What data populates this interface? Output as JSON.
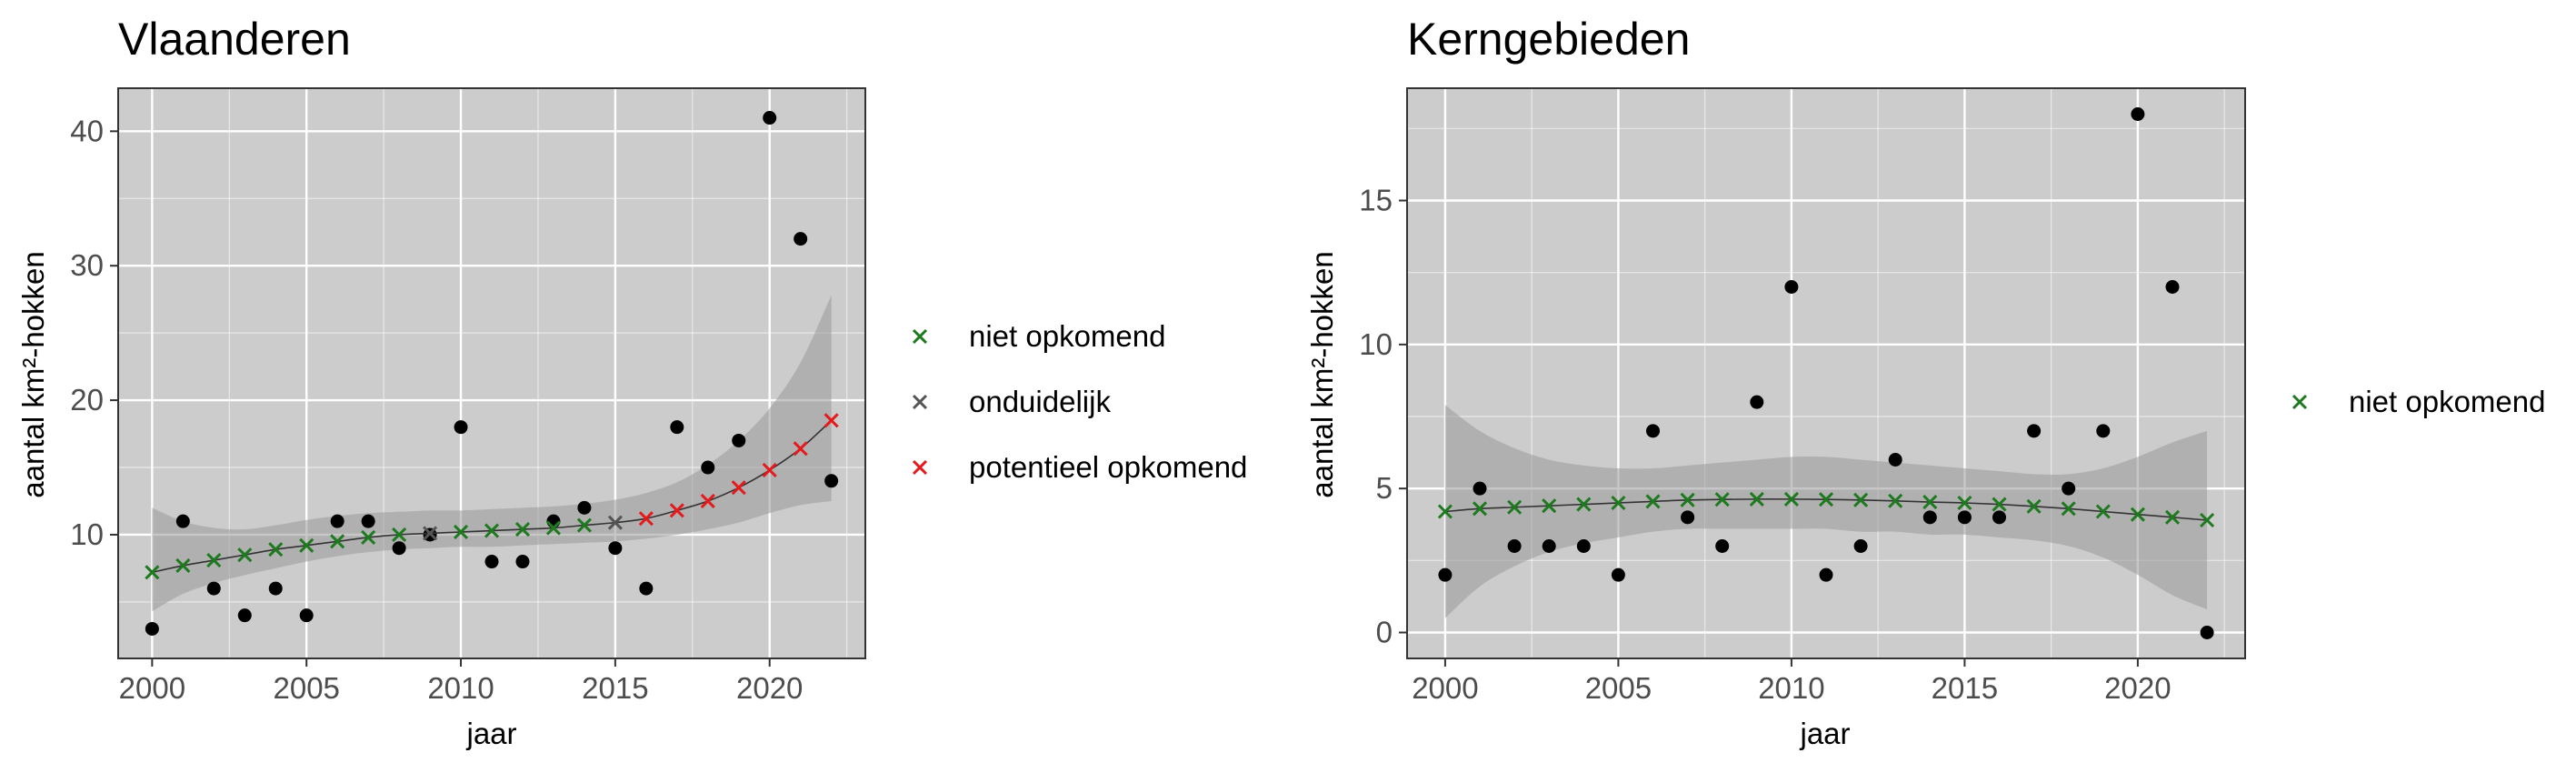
{
  "chart_data": [
    {
      "type": "scatter",
      "title": "Vlaanderen",
      "xlabel": "jaar",
      "ylabel": "aantal km²-hokken",
      "xlim": [
        1998.9,
        2023.1
      ],
      "ylim": [
        0.8,
        43.2
      ],
      "x_ticks": [
        2000,
        2005,
        2010,
        2015,
        2020
      ],
      "y_ticks": [
        10,
        20,
        30,
        40
      ],
      "grid": true,
      "background": "#cccccc",
      "observed": {
        "x": [
          2000,
          2001,
          2002,
          2003,
          2004,
          2005,
          2006,
          2007,
          2008,
          2009,
          2010,
          2011,
          2012,
          2013,
          2014,
          2015,
          2016,
          2017,
          2018,
          2019,
          2020,
          2021,
          2022
        ],
        "y": [
          3,
          11,
          6,
          4,
          6,
          4,
          11,
          11,
          9,
          10,
          18,
          8,
          8,
          11,
          12,
          9,
          6,
          18,
          15,
          17,
          41,
          32,
          14
        ]
      },
      "fit": {
        "x": [
          2000,
          2001,
          2002,
          2003,
          2004,
          2005,
          2006,
          2007,
          2008,
          2009,
          2010,
          2011,
          2012,
          2013,
          2014,
          2015,
          2016,
          2017,
          2018,
          2019,
          2020,
          2021,
          2022
        ],
        "y": [
          7.2,
          7.7,
          8.1,
          8.5,
          8.9,
          9.2,
          9.5,
          9.8,
          10.0,
          10.1,
          10.2,
          10.3,
          10.4,
          10.5,
          10.7,
          10.9,
          11.2,
          11.8,
          12.5,
          13.5,
          14.8,
          16.4,
          18.5
        ],
        "ci_lower": [
          4.3,
          5.6,
          6.4,
          7.0,
          7.5,
          8.0,
          8.4,
          8.7,
          8.9,
          9.0,
          9.1,
          9.1,
          9.2,
          9.3,
          9.4,
          9.5,
          9.7,
          10.0,
          10.4,
          10.9,
          11.6,
          12.2,
          12.5
        ],
        "ci_upper": [
          12.0,
          11.0,
          10.5,
          10.4,
          10.7,
          11.1,
          11.4,
          11.6,
          11.7,
          11.8,
          11.8,
          11.9,
          12.0,
          12.1,
          12.3,
          12.6,
          13.1,
          13.9,
          15.2,
          17.0,
          19.4,
          22.8,
          27.8
        ],
        "status": [
          "niet opkomend",
          "niet opkomend",
          "niet opkomend",
          "niet opkomend",
          "niet opkomend",
          "niet opkomend",
          "niet opkomend",
          "niet opkomend",
          "niet opkomend",
          "onduidelijk",
          "niet opkomend",
          "niet opkomend",
          "niet opkomend",
          "niet opkomend",
          "niet opkomend",
          "onduidelijk",
          "potentieel opkomend",
          "potentieel opkomend",
          "potentieel opkomend",
          "potentieel opkomend",
          "potentieel opkomend",
          "potentieel opkomend",
          "potentieel opkomend"
        ]
      },
      "legend": {
        "placement": "right",
        "entries": [
          {
            "label": "niet opkomend",
            "color": "#1e7a1e"
          },
          {
            "label": "onduidelijk",
            "color": "#555555"
          },
          {
            "label": "potentieel opkomend",
            "color": "#e41a1c"
          }
        ]
      }
    },
    {
      "type": "scatter",
      "title": "Kerngebieden",
      "xlabel": "jaar",
      "ylabel": "aantal km²-hokken",
      "xlim": [
        1998.9,
        2023.1
      ],
      "ylim": [
        -0.9,
        18.9
      ],
      "x_ticks": [
        2000,
        2005,
        2010,
        2015,
        2020
      ],
      "y_ticks": [
        0,
        5,
        10,
        15
      ],
      "grid": true,
      "background": "#cccccc",
      "observed": {
        "x": [
          2000,
          2001,
          2002,
          2003,
          2004,
          2005,
          2006,
          2007,
          2008,
          2009,
          2010,
          2011,
          2012,
          2013,
          2014,
          2015,
          2016,
          2017,
          2018,
          2019,
          2020,
          2021,
          2022
        ],
        "y": [
          2,
          5,
          3,
          3,
          3,
          2,
          7,
          4,
          3,
          8,
          12,
          2,
          3,
          6,
          4,
          4,
          4,
          7,
          5,
          7,
          18,
          12,
          0
        ]
      },
      "fit": {
        "x": [
          2000,
          2001,
          2002,
          2003,
          2004,
          2005,
          2006,
          2007,
          2008,
          2009,
          2010,
          2011,
          2012,
          2013,
          2014,
          2015,
          2016,
          2017,
          2018,
          2019,
          2020,
          2021,
          2022
        ],
        "y": [
          4.2,
          4.3,
          4.35,
          4.4,
          4.45,
          4.5,
          4.55,
          4.6,
          4.62,
          4.63,
          4.63,
          4.62,
          4.6,
          4.57,
          4.53,
          4.5,
          4.45,
          4.38,
          4.3,
          4.2,
          4.1,
          4.0,
          3.9
        ],
        "ci_lower": [
          0.5,
          1.6,
          2.3,
          2.8,
          3.1,
          3.3,
          3.5,
          3.6,
          3.6,
          3.6,
          3.6,
          3.6,
          3.5,
          3.5,
          3.4,
          3.4,
          3.3,
          3.2,
          3.0,
          2.6,
          2.0,
          1.3,
          0.8
        ],
        "ci_upper": [
          7.9,
          7.0,
          6.4,
          6.0,
          5.8,
          5.7,
          5.7,
          5.8,
          5.9,
          6.0,
          6.1,
          6.1,
          6.0,
          5.9,
          5.8,
          5.7,
          5.6,
          5.5,
          5.5,
          5.7,
          6.1,
          6.6,
          7.0
        ],
        "status": [
          "niet opkomend",
          "niet opkomend",
          "niet opkomend",
          "niet opkomend",
          "niet opkomend",
          "niet opkomend",
          "niet opkomend",
          "niet opkomend",
          "niet opkomend",
          "niet opkomend",
          "niet opkomend",
          "niet opkomend",
          "niet opkomend",
          "niet opkomend",
          "niet opkomend",
          "niet opkomend",
          "niet opkomend",
          "niet opkomend",
          "niet opkomend",
          "niet opkomend",
          "niet opkomend",
          "niet opkomend",
          "niet opkomend"
        ]
      },
      "legend": {
        "placement": "right",
        "entries": [
          {
            "label": "niet opkomend",
            "color": "#1e7a1e"
          }
        ]
      }
    }
  ],
  "colors": {
    "point": "#000000",
    "ribbon": "#999999",
    "gridline": "#ffffff",
    "fit_line": "#333333"
  }
}
